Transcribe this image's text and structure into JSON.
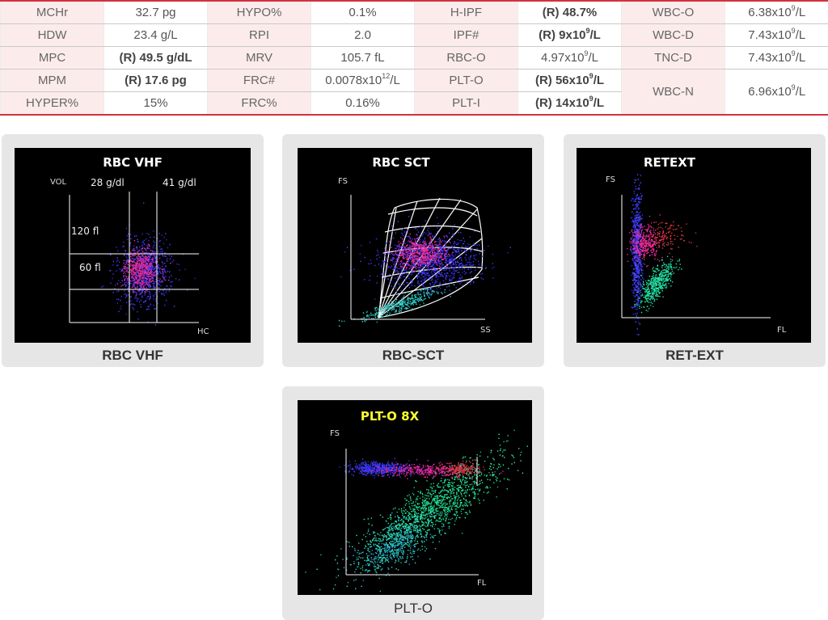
{
  "table": {
    "rows": [
      [
        {
          "label": "MCHr",
          "value": "32.7 pg"
        },
        {
          "label": "HYPO%",
          "value": "0.1%"
        },
        {
          "label": "H-IPF",
          "value": "(R) 48.7%",
          "flag": true
        },
        {
          "label": "WBC-O",
          "value": "6.38x10",
          "sup": "9",
          "suffix": "/L"
        }
      ],
      [
        {
          "label": "HDW",
          "value": "23.4 g/L"
        },
        {
          "label": "RPI",
          "value": "2.0"
        },
        {
          "label": "IPF#",
          "value": "(R) 9x10",
          "sup": "9",
          "suffix": "/L",
          "flag": true
        },
        {
          "label": "WBC-D",
          "value": "7.43x10",
          "sup": "9",
          "suffix": "/L"
        }
      ],
      [
        {
          "label": "MPC",
          "value": "(R) 49.5 g/dL",
          "flag": true
        },
        {
          "label": "MRV",
          "value": "105.7 fL"
        },
        {
          "label": "RBC-O",
          "value": "4.97x10",
          "sup": "9",
          "suffix": "/L"
        },
        {
          "label": "TNC-D",
          "value": "7.43x10",
          "sup": "9",
          "suffix": "/L"
        }
      ],
      [
        {
          "label": "MPM",
          "value": "(R) 17.6 pg",
          "flag": true
        },
        {
          "label": "FRC#",
          "value": "0.0078x10",
          "sup": "12",
          "suffix": "/L"
        },
        {
          "label": "PLT-O",
          "value": "(R) 56x10",
          "sup": "9",
          "suffix": "/L",
          "flag": true
        },
        {
          "label": "WBC-N",
          "value": "6.96x10",
          "sup": "9",
          "suffix": "/L",
          "rowspan": 2
        }
      ],
      [
        {
          "label": "HYPER%",
          "value": "15%"
        },
        {
          "label": "FRC%",
          "value": "0.16%"
        },
        {
          "label": "PLT-I",
          "value": "(R) 14x10",
          "sup": "9",
          "suffix": "/L",
          "flag": true
        }
      ]
    ]
  },
  "panels": {
    "rbc_vhf": {
      "caption": "RBC VHF",
      "title": "RBC VHF",
      "vol_label": "VOL",
      "hc_label": "HC",
      "col1": "28 g/dl",
      "col2": "41 g/dl",
      "row1": "120 fl",
      "row2": "60 fl"
    },
    "rbc_sct": {
      "caption": "RBC-SCT",
      "title": "RBC SCT",
      "y_label": "FS",
      "x_label": "SS"
    },
    "ret_ext": {
      "caption": "RET-EXT",
      "title": "RETEXT",
      "y_label": "FS",
      "x_label": "FL"
    },
    "plt_o": {
      "caption": "PLT-O",
      "title": "PLT-O 8X",
      "y_label": "FS",
      "x_label": "FL"
    }
  },
  "colors": {
    "border_red": "#d2323c",
    "label_bg": "#fbeceb",
    "panel_bg": "#e6e6e6",
    "plot_bg": "#000000",
    "title_yellow": "#ffff33"
  }
}
